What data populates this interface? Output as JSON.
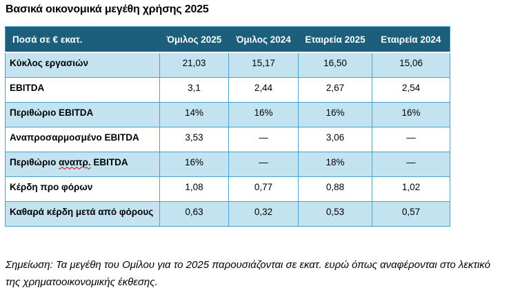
{
  "page": {
    "title": "Βασικά οικονομικά μεγέθη χρήσης 2025",
    "note": "Σημείωση: Τα μεγέθη του Ομίλου για το 2025 παρουσιάζονται σε εκατ. ευρώ όπως αναφέρονται στο λεκτικό της χρηματοοικονομικής έκθεσης."
  },
  "colors": {
    "header_bg": "#1C5F7D",
    "header_text": "#FFFFFF",
    "banded_row_bg": "#C3E3F1",
    "plain_row_bg": "#FFFFFF",
    "table_border": "#44A3C9",
    "spellcheck_underline": "#C00000"
  },
  "table": {
    "headers": [
      "Ποσά σε € εκατ.",
      "Όμιλος 2025",
      "Όμιλος 2024",
      "Εταιρεία 2025",
      "Εταιρεία 2024"
    ],
    "rows": [
      {
        "label": "Κύκλος εργασιών",
        "values": [
          "21,03",
          "15,17",
          "16,50",
          "15,06"
        ]
      },
      {
        "label": "EBITDA",
        "values": [
          "3,1",
          "2,44",
          "2,67",
          "2,54"
        ]
      },
      {
        "label": "Περιθώριο EBITDA",
        "values": [
          "14%",
          "16%",
          "16%",
          "16%"
        ]
      },
      {
        "label": "Αναπροσαρμοσμένο EBITDA",
        "values": [
          "3,53",
          "—",
          "3,06",
          "—"
        ]
      },
      {
        "label_prefix": "Περιθώριο ",
        "label_misspelled": "αναπρ.",
        "label_suffix": " EBITDA",
        "values": [
          "16%",
          "—",
          "18%",
          "—"
        ]
      },
      {
        "label": "Κέρδη προ φόρων",
        "values": [
          "1,08",
          "0,77",
          "0,88",
          "1,02"
        ]
      },
      {
        "label": "Καθαρά κέρδη μετά από φόρους",
        "values": [
          "0,63",
          "0,32",
          "0,53",
          "0,57"
        ]
      }
    ]
  }
}
